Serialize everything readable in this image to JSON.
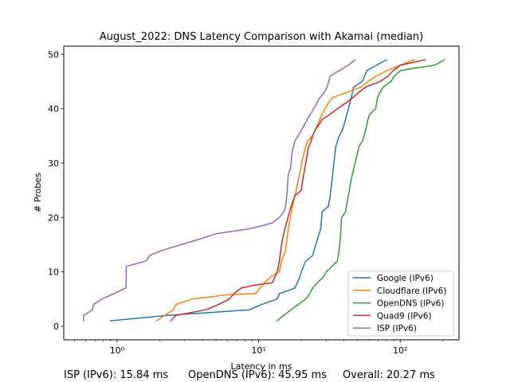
{
  "chart_data": {
    "type": "line",
    "title": "August_2022: DNS Latency Comparison with Akamai (median)",
    "xlabel": "Latency in ms",
    "ylabel": "# Probes",
    "xscale": "log",
    "xlim": [
      0.42,
      260
    ],
    "ylim": [
      -2.5,
      51.5
    ],
    "x_ticks": [
      1,
      10,
      100
    ],
    "x_tick_labels": [
      "10⁰",
      "10¹",
      "10²"
    ],
    "y_ticks": [
      0,
      10,
      20,
      30,
      40,
      50
    ],
    "y_tick_labels": [
      "0",
      "10",
      "20",
      "30",
      "40",
      "50"
    ],
    "grid": false,
    "legend_position": "lower-right",
    "series": [
      {
        "name": "Google (IPv6)",
        "color": "#1f77b4",
        "points": [
          [
            0.9,
            1
          ],
          [
            2.3,
            2
          ],
          [
            8.5,
            3
          ],
          [
            10.5,
            4
          ],
          [
            13.5,
            5
          ],
          [
            14,
            6
          ],
          [
            18,
            7
          ],
          [
            19.5,
            9
          ],
          [
            20,
            10
          ],
          [
            21.5,
            12
          ],
          [
            24,
            13
          ],
          [
            26,
            16
          ],
          [
            27.5,
            18
          ],
          [
            28,
            21
          ],
          [
            31,
            22
          ],
          [
            32,
            24
          ],
          [
            33,
            27
          ],
          [
            34,
            30
          ],
          [
            35,
            33
          ],
          [
            37,
            35
          ],
          [
            39,
            36
          ],
          [
            40,
            37
          ],
          [
            41,
            38
          ],
          [
            42,
            39
          ],
          [
            43,
            40
          ],
          [
            44,
            41
          ],
          [
            45,
            42
          ],
          [
            46,
            43
          ],
          [
            47,
            44
          ],
          [
            54,
            45
          ],
          [
            56,
            46
          ],
          [
            58,
            47
          ],
          [
            68,
            48
          ],
          [
            80,
            49
          ]
        ]
      },
      {
        "name": "Cloudflare (IPv6)",
        "color": "#ff7f0e",
        "points": [
          [
            1.9,
            1
          ],
          [
            2.5,
            3
          ],
          [
            2.6,
            4
          ],
          [
            3.4,
            5
          ],
          [
            5,
            5.5
          ],
          [
            6,
            5.8
          ],
          [
            9.5,
            6
          ],
          [
            11,
            8
          ],
          [
            12,
            9
          ],
          [
            14,
            10
          ],
          [
            14.5,
            12
          ],
          [
            15.5,
            14
          ],
          [
            16,
            17
          ],
          [
            16.5,
            19
          ],
          [
            17,
            21
          ],
          [
            18,
            24
          ],
          [
            19.5,
            28
          ],
          [
            20.5,
            31
          ],
          [
            22,
            34
          ],
          [
            24,
            35
          ],
          [
            26,
            37
          ],
          [
            28,
            39
          ],
          [
            31,
            41
          ],
          [
            33,
            42
          ],
          [
            42,
            43
          ],
          [
            53,
            44
          ],
          [
            59,
            45
          ],
          [
            68,
            46
          ],
          [
            80,
            47
          ],
          [
            100,
            48
          ],
          [
            112,
            48.5
          ],
          [
            125,
            49
          ]
        ]
      },
      {
        "name": "OpenDNS (IPv6)",
        "color": "#2ca02c",
        "points": [
          [
            13.5,
            1
          ],
          [
            15,
            2
          ],
          [
            19,
            4
          ],
          [
            21.5,
            5
          ],
          [
            23,
            6
          ],
          [
            24,
            7
          ],
          [
            26,
            8
          ],
          [
            28.5,
            9
          ],
          [
            30,
            10
          ],
          [
            33,
            11
          ],
          [
            36,
            12
          ],
          [
            37,
            14
          ],
          [
            38,
            17
          ],
          [
            38.5,
            20
          ],
          [
            41,
            21
          ],
          [
            43,
            24
          ],
          [
            45,
            27
          ],
          [
            48,
            30
          ],
          [
            50,
            32
          ],
          [
            51,
            33
          ],
          [
            54,
            34
          ],
          [
            57,
            36
          ],
          [
            59,
            38
          ],
          [
            61,
            39
          ],
          [
            67,
            40
          ],
          [
            68,
            41
          ],
          [
            69,
            42
          ],
          [
            72,
            43
          ],
          [
            76,
            44
          ],
          [
            86,
            45
          ],
          [
            91,
            46
          ],
          [
            100,
            47
          ],
          [
            130,
            47.5
          ],
          [
            175,
            48
          ],
          [
            205,
            49
          ]
        ]
      },
      {
        "name": "Quad9 (IPv6)",
        "color": "#d62728",
        "points": [
          [
            2.4,
            1
          ],
          [
            2.6,
            2
          ],
          [
            4.2,
            3
          ],
          [
            5.2,
            4
          ],
          [
            6.2,
            5
          ],
          [
            6.7,
            6
          ],
          [
            7.5,
            7
          ],
          [
            9,
            7.5
          ],
          [
            12.5,
            8
          ],
          [
            13.5,
            10
          ],
          [
            14,
            12
          ],
          [
            14.5,
            15
          ],
          [
            15,
            17
          ],
          [
            16.5,
            21
          ],
          [
            18,
            24
          ],
          [
            20,
            25
          ],
          [
            20.5,
            27
          ],
          [
            21.5,
            30
          ],
          [
            22.5,
            33
          ],
          [
            23.5,
            34
          ],
          [
            24,
            35
          ],
          [
            25,
            36
          ],
          [
            26.5,
            37
          ],
          [
            28,
            38
          ],
          [
            32,
            39
          ],
          [
            36,
            40
          ],
          [
            41,
            41
          ],
          [
            46,
            42
          ],
          [
            51,
            43
          ],
          [
            57,
            44
          ],
          [
            72,
            45
          ],
          [
            82,
            46
          ],
          [
            89,
            47
          ],
          [
            100,
            48
          ],
          [
            150,
            49
          ]
        ]
      },
      {
        "name": "ISP (IPv6)",
        "color": "#9467bd",
        "points": [
          [
            0.58,
            1
          ],
          [
            0.58,
            2
          ],
          [
            0.67,
            3
          ],
          [
            0.68,
            4
          ],
          [
            0.78,
            5
          ],
          [
            1.15,
            7
          ],
          [
            1.16,
            8
          ],
          [
            1.16,
            11
          ],
          [
            1.6,
            12
          ],
          [
            1.7,
            13
          ],
          [
            2.1,
            14
          ],
          [
            3.8,
            16
          ],
          [
            5,
            17
          ],
          [
            9,
            18
          ],
          [
            12.5,
            19
          ],
          [
            14,
            20
          ],
          [
            15,
            21
          ],
          [
            15.5,
            22
          ],
          [
            15.8,
            24
          ],
          [
            16,
            26
          ],
          [
            16.2,
            28
          ],
          [
            16.8,
            29
          ],
          [
            17.2,
            32
          ],
          [
            18,
            34
          ],
          [
            20,
            36
          ],
          [
            22,
            38
          ],
          [
            24.5,
            40
          ],
          [
            27,
            42
          ],
          [
            29,
            43
          ],
          [
            30.5,
            44
          ],
          [
            32,
            46
          ],
          [
            37,
            47
          ],
          [
            43,
            48
          ],
          [
            48,
            49
          ]
        ]
      }
    ]
  },
  "footer": {
    "isp": "ISP (IPv6): 15.84 ms",
    "opendns": "OpenDNS (IPv6): 45.95 ms",
    "overall": "Overall: 20.27 ms"
  }
}
